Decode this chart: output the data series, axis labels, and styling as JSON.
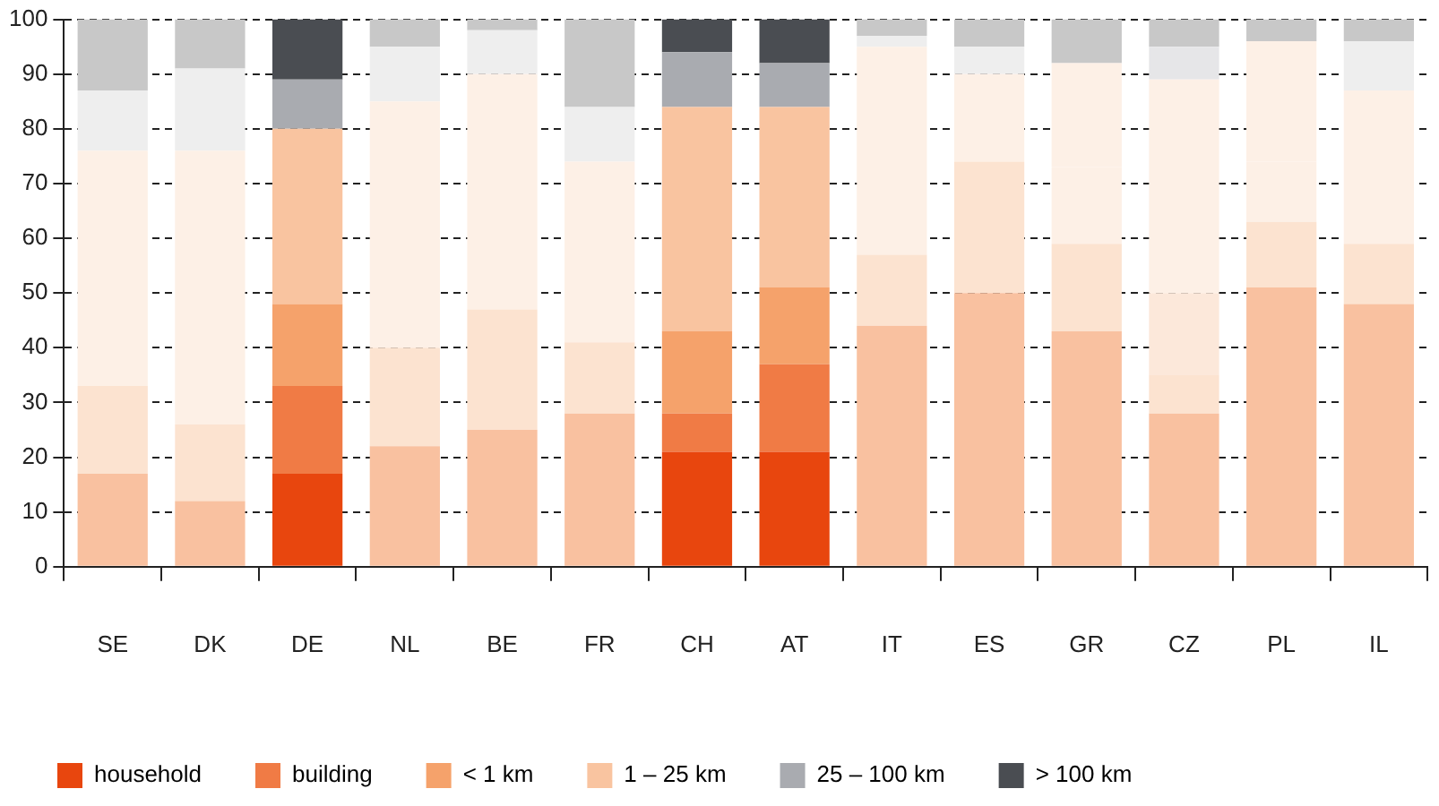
{
  "chart_data": {
    "type": "bar",
    "stacked": true,
    "categories": [
      "SE",
      "DK",
      "DE",
      "NL",
      "BE",
      "FR",
      "CH",
      "AT",
      "IT",
      "ES",
      "GR",
      "CZ",
      "PL",
      "IL"
    ],
    "ylim": [
      0,
      100
    ],
    "yticks": [
      0,
      10,
      20,
      30,
      40,
      50,
      60,
      70,
      80,
      90,
      100
    ],
    "grid": "y",
    "legend": "bottom",
    "series": [
      {
        "name": "household",
        "color": "#e8460e",
        "values": [
          17,
          12,
          17,
          22,
          25,
          28,
          21,
          21,
          44,
          50,
          43,
          28,
          51,
          48
        ],
        "colors": [
          "#f9c1a0",
          "#f9c1a0",
          "#e8460e",
          "#f9c1a0",
          "#f9c1a0",
          "#f9c1a0",
          "#e8460e",
          "#e8460e",
          "#f9c1a0",
          "#f9c1a0",
          "#f9c1a0",
          "#f9c1a0",
          "#f9c1a0",
          "#f9c1a0"
        ]
      },
      {
        "name": "building",
        "color": "#f07b45",
        "values": [
          16,
          14,
          16,
          18,
          22,
          13,
          7,
          16,
          13,
          24,
          16,
          7,
          12,
          11
        ],
        "colors": [
          "#fce3d0",
          "#fce3d0",
          "#f07b45",
          "#fce3d0",
          "#fce3d0",
          "#fce3d0",
          "#f07b45",
          "#f07b45",
          "#fce3d0",
          "#fce3d0",
          "#fce3d0",
          "#fce3d0",
          "#fce3d0",
          "#fce3d0"
        ]
      },
      {
        "name": "< 1 km",
        "color": "#f5a26b",
        "values": [
          43,
          50,
          15,
          45,
          43,
          33,
          15,
          14,
          38,
          16,
          14,
          15,
          11,
          28
        ],
        "colors": [
          "#fdf0e6",
          "#fdf0e6",
          "#f5a26b",
          "#fdf0e6",
          "#fdf0e6",
          "#fdf0e6",
          "#f5a26b",
          "#f5a26b",
          "#fdf0e6",
          "#fdf0e6",
          "#fdf0e6",
          "#fce8da",
          "#fdf0e6",
          "#fdf0e6"
        ]
      },
      {
        "name": "1 – 25 km",
        "color": "#f9c4a0",
        "values": [
          11,
          15,
          32,
          10,
          8,
          10,
          41,
          33,
          2,
          5,
          19,
          39,
          22,
          9
        ],
        "colors": [
          "#eeeeee",
          "#eeeeee",
          "#f9c4a0",
          "#eeeeee",
          "#eeeeee",
          "#eeeeee",
          "#f9c4a0",
          "#f9c4a0",
          "#eeeeee",
          "#eeeeee",
          "#fdf0e6",
          "#fdf0e6",
          "#fdf0e6",
          "#eeeeee"
        ]
      },
      {
        "name": "25 – 100 km",
        "color": "#a9abb0",
        "values": [
          13,
          9,
          9,
          5,
          2,
          16,
          10,
          8,
          3,
          5,
          8,
          6,
          4,
          4
        ],
        "colors": [
          "#c8c8c8",
          "#c8c8c8",
          "#a9abb0",
          "#c8c8c8",
          "#c8c8c8",
          "#c8c8c8",
          "#a9abb0",
          "#a9abb0",
          "#c8c8c8",
          "#c8c8c8",
          "#c8c8c8",
          "#e6e6e8",
          "#c8c8c8",
          "#c8c8c8"
        ]
      },
      {
        "name": "> 100 km",
        "color": "#4a4d52",
        "values": [
          0,
          0,
          11,
          0,
          0,
          0,
          6,
          8,
          0,
          0,
          0,
          5,
          0,
          0
        ],
        "colors": [
          "#c8c8c8",
          "#c8c8c8",
          "#4a4d52",
          "#c8c8c8",
          "#c8c8c8",
          "#c8c8c8",
          "#4a4d52",
          "#4a4d52",
          "#c8c8c8",
          "#c8c8c8",
          "#c8c8c8",
          "#c8c8c8",
          "#c8c8c8",
          "#c8c8c8"
        ]
      }
    ]
  }
}
